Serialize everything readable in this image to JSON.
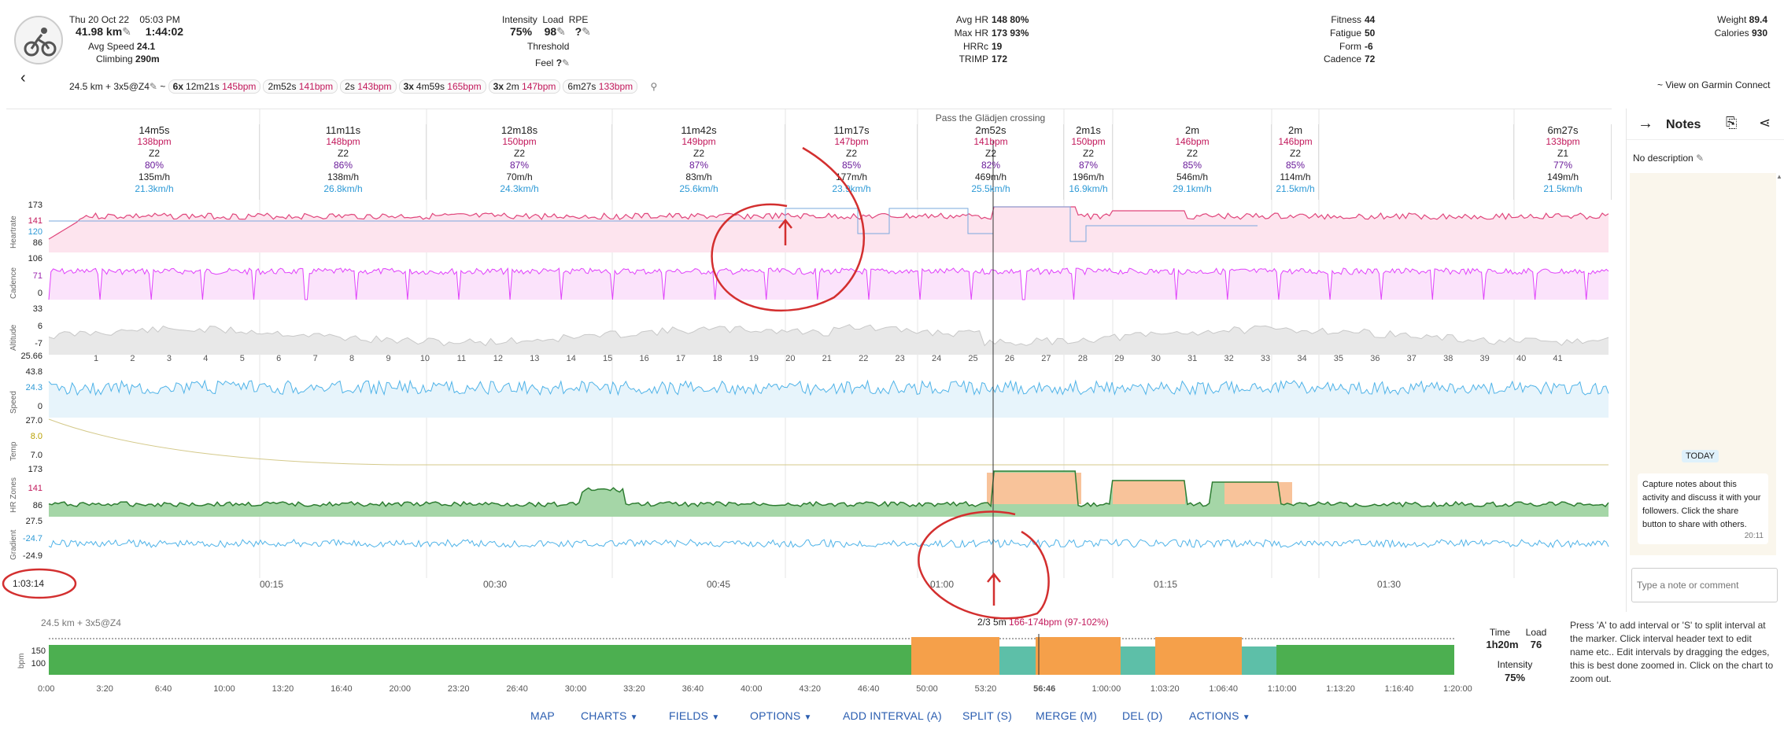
{
  "summary": {
    "date": "Thu 20 Oct 22",
    "time": "05:03 PM",
    "distance": "41.98 km",
    "duration": "1:44:02",
    "avg_speed_label": "Avg Speed",
    "avg_speed": "24.1",
    "climbing_label": "Climbing",
    "climbing": "290m",
    "intensity_label": "Intensity",
    "intensity": "75%",
    "load_label": "Load",
    "load": "98",
    "rpe_label": "RPE",
    "rpe": "?",
    "threshold_label": "Threshold",
    "feel_label": "Feel",
    "feel": "?",
    "avg_hr_label": "Avg HR",
    "avg_hr": "148",
    "avg_hr_pct": "80%",
    "max_hr_label": "Max HR",
    "max_hr": "173",
    "max_hr_pct": "93%",
    "hrrc_label": "HRRc",
    "hrrc": "19",
    "trimp_label": "TRIMP",
    "trimp": "172",
    "fitness_label": "Fitness",
    "fitness": "44",
    "fatigue_label": "Fatigue",
    "fatigue": "50",
    "form_label": "Form",
    "form": "-6",
    "cadence_label": "Cadence",
    "cadence": "72",
    "weight_label": "Weight",
    "weight": "89.4",
    "calories_label": "Calories",
    "calories": "930"
  },
  "workout": {
    "name": "24.5 km + 3x5@Z4",
    "sep": "~",
    "chips": [
      {
        "n": "6x",
        "t": "12m21s",
        "h": "145bpm"
      },
      {
        "n": "",
        "t": "2m52s",
        "h": "141bpm"
      },
      {
        "n": "",
        "t": "2s",
        "h": "143bpm"
      },
      {
        "n": "3x",
        "t": "4m59s",
        "h": "165bpm"
      },
      {
        "n": "3x",
        "t": "2m",
        "h": "147bpm"
      },
      {
        "n": "",
        "t": "6m27s",
        "h": "133bpm"
      }
    ]
  },
  "garmin_link": "~ View on Garmin Connect",
  "intervals": [
    {
      "d": "14m5s",
      "hr": "138bpm",
      "z": "Z2",
      "p": "80%",
      "c": "135m/h",
      "s": "21.3km/h"
    },
    {
      "d": "11m11s",
      "hr": "148bpm",
      "z": "Z2",
      "p": "86%",
      "c": "138m/h",
      "s": "26.8km/h"
    },
    {
      "d": "12m18s",
      "hr": "150bpm",
      "z": "Z2",
      "p": "87%",
      "c": "70m/h",
      "s": "24.3km/h"
    },
    {
      "d": "11m42s",
      "hr": "149bpm",
      "z": "Z2",
      "p": "87%",
      "c": "83m/h",
      "s": "25.6km/h"
    },
    {
      "d": "11m17s",
      "hr": "147bpm",
      "z": "Z2",
      "p": "85%",
      "c": "177m/h",
      "s": "23.9km/h"
    },
    {
      "d": "2m52s",
      "hr": "141bpm",
      "z": "Z2",
      "p": "82%",
      "c": "469m/h",
      "s": "25.5km/h",
      "title": "Pass the Glädjen crossing"
    },
    {
      "d": "2m1s",
      "hr": "150bpm",
      "z": "Z2",
      "p": "87%",
      "c": "196m/h",
      "s": "16.9km/h"
    },
    {
      "d": "2m",
      "hr": "146bpm",
      "z": "Z2",
      "p": "85%",
      "c": "546m/h",
      "s": "29.1km/h"
    },
    {
      "d": "2m",
      "hr": "146bpm",
      "z": "Z2",
      "p": "85%",
      "c": "114m/h",
      "s": "21.5km/h"
    },
    {
      "d": "6m27s",
      "hr": "133bpm",
      "z": "Z1",
      "p": "77%",
      "c": "149m/h",
      "s": "21.5km/h"
    }
  ],
  "channels": {
    "heartrate": {
      "label": "Heartrate",
      "ticks": [
        "173",
        "141",
        "120",
        "86"
      ]
    },
    "cadence": {
      "label": "Cadence",
      "ticks": [
        "106",
        "71",
        "0"
      ]
    },
    "altitude": {
      "label": "Altitude",
      "ticks": [
        "33",
        "6",
        "-7"
      ]
    },
    "speed": {
      "label": "Speed",
      "ticks": [
        "25.66",
        "43.8",
        "24.3",
        "0"
      ]
    },
    "temp": {
      "label": "Temp",
      "ticks": [
        "27.0",
        "8.0",
        "7.0"
      ]
    },
    "hrzones": {
      "label": "HR Zones",
      "ticks": [
        "173",
        "141",
        "86"
      ]
    },
    "gradient": {
      "label": "Gradient",
      "ticks": [
        "27.5",
        "-24.7",
        "-24.9"
      ]
    }
  },
  "laps": [
    "1",
    "2",
    "3",
    "4",
    "5",
    "6",
    "7",
    "8",
    "9",
    "10",
    "11",
    "12",
    "13",
    "14",
    "15",
    "16",
    "17",
    "18",
    "19",
    "20",
    "21",
    "22",
    "23",
    "24",
    "25",
    "26",
    "27",
    "28",
    "29",
    "30",
    "31",
    "32",
    "33",
    "34",
    "35",
    "36",
    "37",
    "38",
    "39",
    "40",
    "41"
  ],
  "cursor_time": "1:03:14",
  "time_ticks": [
    "00:15",
    "00:30",
    "00:45",
    "01:00",
    "01:15",
    "01:30"
  ],
  "interval_strip": {
    "name": "24.5 km + 3x5@Z4",
    "hover": "2/3 5m",
    "hover_range": "166-174bpm (97-102%)",
    "ylabel": "bpm",
    "yticks": [
      "150",
      "100"
    ],
    "xticks": [
      "0:00",
      "3:20",
      "6:40",
      "10:00",
      "13:20",
      "16:40",
      "20:00",
      "23:20",
      "26:40",
      "30:00",
      "33:20",
      "36:40",
      "40:00",
      "43:20",
      "46:40",
      "50:00",
      "53:20",
      "56:46",
      "1:00:00",
      "1:03:20",
      "1:06:40",
      "1:10:00",
      "1:13:20",
      "1:16:40",
      "1:20:00"
    ]
  },
  "totals": {
    "time_label": "Time",
    "time": "1h20m",
    "load_label": "Load",
    "load": "76",
    "intensity_label": "Intensity",
    "intensity": "75%"
  },
  "help_text": "Press 'A' to add interval or 'S' to split interval at the marker. Click interval header text to edit name etc.. Edit intervals by dragging the edges, this is best done zoomed in. Click on the chart to zoom out.",
  "toolbar": {
    "map": "MAP",
    "charts": "CHARTS",
    "fields": "FIELDS",
    "options": "OPTIONS",
    "add": "ADD INTERVAL (A)",
    "split": "SPLIT (S)",
    "merge": "MERGE (M)",
    "del": "DEL (D)",
    "actions": "ACTIONS"
  },
  "notes": {
    "title": "Notes",
    "no_desc": "No description",
    "today": "TODAY",
    "message": "Capture notes about this activity and discuss it with your followers. Click the share button to share with others.",
    "msg_time": "20:11",
    "placeholder": "Type a note or comment"
  },
  "colors": {
    "hr": "#e0457b",
    "cadence": "#e040fb",
    "speed": "#4fb3e8",
    "green": "#4caf50",
    "orange": "#f5a04a",
    "teal": "#5dbfa8",
    "annotation": "#d32f2f"
  }
}
